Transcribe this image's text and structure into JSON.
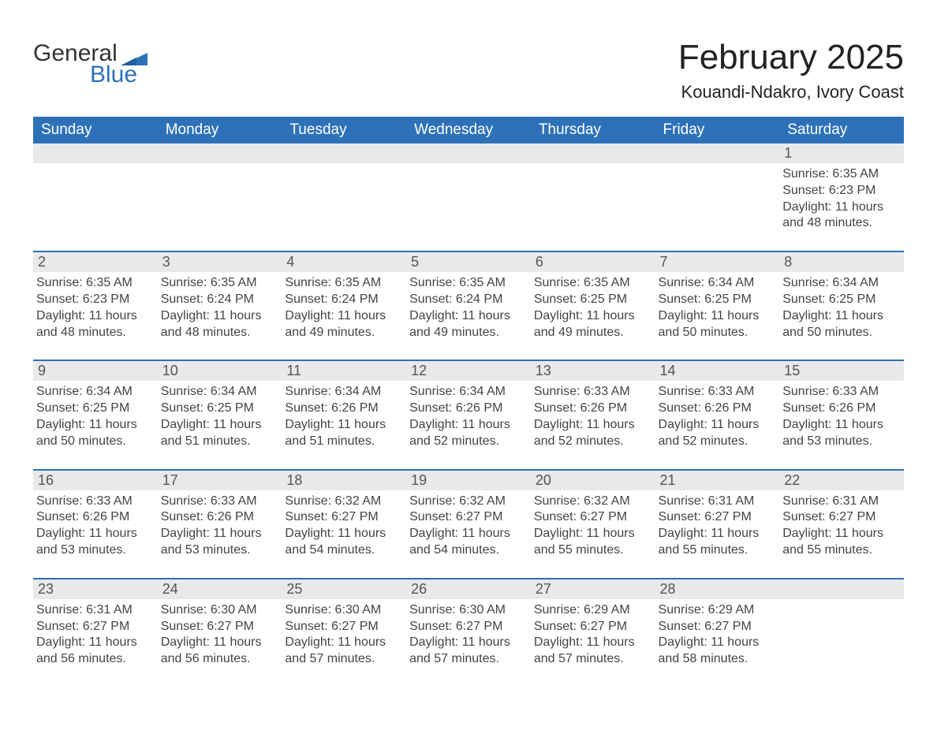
{
  "brand": {
    "name_part1": "General",
    "name_part2": "Blue",
    "color": "#2d72b8"
  },
  "title": "February 2025",
  "location": "Kouandi-Ndakro, Ivory Coast",
  "colors": {
    "header_bg": "#2d72b8",
    "row_rule": "#2d72b8",
    "daynum_bg": "#e9e9e9",
    "text": "#333333",
    "background": "#ffffff"
  },
  "weekday_labels": [
    "Sunday",
    "Monday",
    "Tuesday",
    "Wednesday",
    "Thursday",
    "Friday",
    "Saturday"
  ],
  "weeks": [
    [
      {
        "day": null
      },
      {
        "day": null
      },
      {
        "day": null
      },
      {
        "day": null
      },
      {
        "day": null
      },
      {
        "day": null
      },
      {
        "day": 1,
        "sunrise": "6:35 AM",
        "sunset": "6:23 PM",
        "daylight": "11 hours and 48 minutes."
      }
    ],
    [
      {
        "day": 2,
        "sunrise": "6:35 AM",
        "sunset": "6:23 PM",
        "daylight": "11 hours and 48 minutes."
      },
      {
        "day": 3,
        "sunrise": "6:35 AM",
        "sunset": "6:24 PM",
        "daylight": "11 hours and 48 minutes."
      },
      {
        "day": 4,
        "sunrise": "6:35 AM",
        "sunset": "6:24 PM",
        "daylight": "11 hours and 49 minutes."
      },
      {
        "day": 5,
        "sunrise": "6:35 AM",
        "sunset": "6:24 PM",
        "daylight": "11 hours and 49 minutes."
      },
      {
        "day": 6,
        "sunrise": "6:35 AM",
        "sunset": "6:25 PM",
        "daylight": "11 hours and 49 minutes."
      },
      {
        "day": 7,
        "sunrise": "6:34 AM",
        "sunset": "6:25 PM",
        "daylight": "11 hours and 50 minutes."
      },
      {
        "day": 8,
        "sunrise": "6:34 AM",
        "sunset": "6:25 PM",
        "daylight": "11 hours and 50 minutes."
      }
    ],
    [
      {
        "day": 9,
        "sunrise": "6:34 AM",
        "sunset": "6:25 PM",
        "daylight": "11 hours and 50 minutes."
      },
      {
        "day": 10,
        "sunrise": "6:34 AM",
        "sunset": "6:25 PM",
        "daylight": "11 hours and 51 minutes."
      },
      {
        "day": 11,
        "sunrise": "6:34 AM",
        "sunset": "6:26 PM",
        "daylight": "11 hours and 51 minutes."
      },
      {
        "day": 12,
        "sunrise": "6:34 AM",
        "sunset": "6:26 PM",
        "daylight": "11 hours and 52 minutes."
      },
      {
        "day": 13,
        "sunrise": "6:33 AM",
        "sunset": "6:26 PM",
        "daylight": "11 hours and 52 minutes."
      },
      {
        "day": 14,
        "sunrise": "6:33 AM",
        "sunset": "6:26 PM",
        "daylight": "11 hours and 52 minutes."
      },
      {
        "day": 15,
        "sunrise": "6:33 AM",
        "sunset": "6:26 PM",
        "daylight": "11 hours and 53 minutes."
      }
    ],
    [
      {
        "day": 16,
        "sunrise": "6:33 AM",
        "sunset": "6:26 PM",
        "daylight": "11 hours and 53 minutes."
      },
      {
        "day": 17,
        "sunrise": "6:33 AM",
        "sunset": "6:26 PM",
        "daylight": "11 hours and 53 minutes."
      },
      {
        "day": 18,
        "sunrise": "6:32 AM",
        "sunset": "6:27 PM",
        "daylight": "11 hours and 54 minutes."
      },
      {
        "day": 19,
        "sunrise": "6:32 AM",
        "sunset": "6:27 PM",
        "daylight": "11 hours and 54 minutes."
      },
      {
        "day": 20,
        "sunrise": "6:32 AM",
        "sunset": "6:27 PM",
        "daylight": "11 hours and 55 minutes."
      },
      {
        "day": 21,
        "sunrise": "6:31 AM",
        "sunset": "6:27 PM",
        "daylight": "11 hours and 55 minutes."
      },
      {
        "day": 22,
        "sunrise": "6:31 AM",
        "sunset": "6:27 PM",
        "daylight": "11 hours and 55 minutes."
      }
    ],
    [
      {
        "day": 23,
        "sunrise": "6:31 AM",
        "sunset": "6:27 PM",
        "daylight": "11 hours and 56 minutes."
      },
      {
        "day": 24,
        "sunrise": "6:30 AM",
        "sunset": "6:27 PM",
        "daylight": "11 hours and 56 minutes."
      },
      {
        "day": 25,
        "sunrise": "6:30 AM",
        "sunset": "6:27 PM",
        "daylight": "11 hours and 57 minutes."
      },
      {
        "day": 26,
        "sunrise": "6:30 AM",
        "sunset": "6:27 PM",
        "daylight": "11 hours and 57 minutes."
      },
      {
        "day": 27,
        "sunrise": "6:29 AM",
        "sunset": "6:27 PM",
        "daylight": "11 hours and 57 minutes."
      },
      {
        "day": 28,
        "sunrise": "6:29 AM",
        "sunset": "6:27 PM",
        "daylight": "11 hours and 58 minutes."
      },
      {
        "day": null
      }
    ]
  ],
  "labels": {
    "sunrise": "Sunrise:",
    "sunset": "Sunset:",
    "daylight": "Daylight:"
  }
}
